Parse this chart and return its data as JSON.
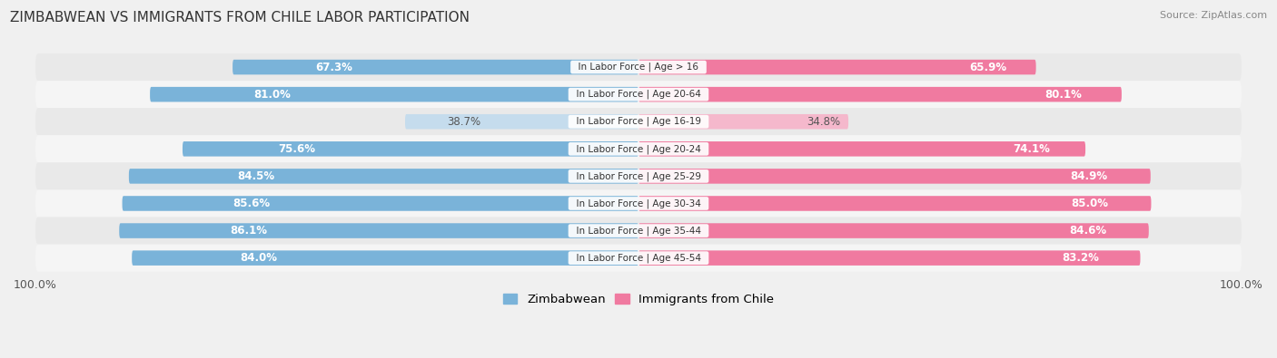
{
  "title": "ZIMBABWEAN VS IMMIGRANTS FROM CHILE LABOR PARTICIPATION",
  "source": "Source: ZipAtlas.com",
  "categories": [
    "In Labor Force | Age > 16",
    "In Labor Force | Age 20-64",
    "In Labor Force | Age 16-19",
    "In Labor Force | Age 20-24",
    "In Labor Force | Age 25-29",
    "In Labor Force | Age 30-34",
    "In Labor Force | Age 35-44",
    "In Labor Force | Age 45-54"
  ],
  "zimbabwean_values": [
    67.3,
    81.0,
    38.7,
    75.6,
    84.5,
    85.6,
    86.1,
    84.0
  ],
  "chile_values": [
    65.9,
    80.1,
    34.8,
    74.1,
    84.9,
    85.0,
    84.6,
    83.2
  ],
  "zimbabwean_color": "#7ab3d9",
  "zimbabwean_color_light": "#c5dced",
  "chile_color": "#f07aa0",
  "chile_color_light": "#f5b8cc",
  "row_bg_even": "#e9e9e9",
  "row_bg_odd": "#f5f5f5",
  "background_color": "#f0f0f0",
  "label_fontsize": 8.5,
  "cat_fontsize": 7.5,
  "title_fontsize": 11,
  "source_fontsize": 8,
  "legend_fontsize": 9.5,
  "bar_height": 0.55,
  "max_value": 100.0
}
